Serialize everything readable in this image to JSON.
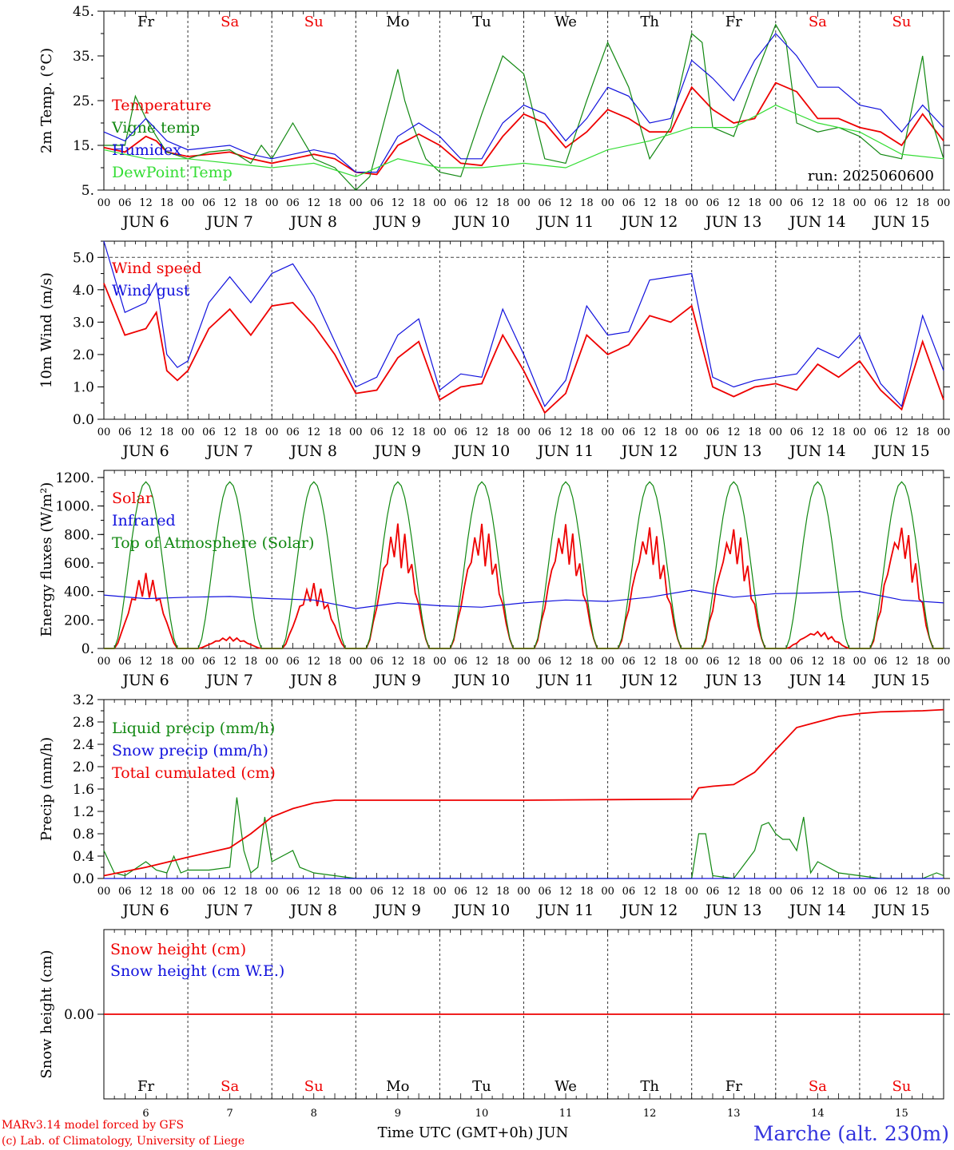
{
  "colors": {
    "red": "#ee0000",
    "green": "#118811",
    "blue": "#1111dd",
    "lightgreen": "#33dd33",
    "black": "#000000"
  },
  "days": {
    "abbr": [
      "Fr",
      "Sa",
      "Su",
      "Mo",
      "Tu",
      "We",
      "Th",
      "Fr",
      "Sa",
      "Su"
    ],
    "weekend": [
      false,
      true,
      true,
      false,
      false,
      false,
      false,
      false,
      true,
      true
    ],
    "dates": [
      "JUN  6",
      "JUN  7",
      "JUN  8",
      "JUN  9",
      "JUN 10",
      "JUN 11",
      "JUN 12",
      "JUN 13",
      "JUN 14",
      "JUN 15"
    ],
    "numbers": [
      "6",
      "7",
      "8",
      "9",
      "10",
      "11",
      "12",
      "13",
      "14",
      "15"
    ],
    "hour_ticks": [
      "00",
      "06",
      "12",
      "18"
    ],
    "end_tick": "00"
  },
  "chart_data": [
    {
      "type": "line",
      "ylabel": "2m Temp. (°C)",
      "ylim": [
        5,
        45
      ],
      "yticks": [
        "45.",
        "35.",
        "25.",
        "15.",
        "5."
      ],
      "ytick_values": [
        45,
        35,
        25,
        15,
        5
      ],
      "annotation": "run: 2025060600",
      "x_unit": "hours since JUN 6 00 UTC",
      "series": [
        {
          "name": "Temperature",
          "color": "red",
          "x": [
            0,
            6,
            12,
            15,
            18,
            24,
            30,
            36,
            42,
            48,
            54,
            60,
            66,
            72,
            78,
            84,
            90,
            96,
            102,
            108,
            114,
            120,
            126,
            132,
            138,
            144,
            150,
            156,
            162,
            168,
            174,
            180,
            186,
            192,
            198,
            204,
            210,
            216,
            222,
            228,
            234,
            240
          ],
          "y": [
            14.5,
            13.5,
            17,
            16,
            13.5,
            12.5,
            13,
            13.5,
            12,
            11,
            12,
            13,
            12,
            9,
            8.5,
            15,
            17.5,
            15,
            11,
            10.5,
            17,
            22,
            20,
            14.5,
            18,
            23,
            21,
            18,
            18,
            28,
            23,
            20,
            21,
            29,
            27,
            21,
            21,
            19,
            18,
            15,
            22,
            16
          ]
        },
        {
          "name": "Vigne temp",
          "color": "green",
          "x": [
            0,
            6,
            9,
            12,
            15,
            18,
            24,
            30,
            36,
            42,
            45,
            48,
            54,
            60,
            66,
            72,
            76,
            80,
            84,
            86,
            88,
            92,
            96,
            102,
            108,
            114,
            120,
            126,
            132,
            138,
            144,
            150,
            156,
            162,
            168,
            171,
            174,
            180,
            186,
            192,
            195,
            198,
            204,
            210,
            216,
            222,
            228,
            234,
            236,
            240
          ],
          "y": [
            15,
            15,
            26,
            21,
            17,
            13.5,
            12,
            13.5,
            14,
            11,
            15,
            12,
            20,
            12,
            10,
            5,
            8,
            20,
            32,
            25,
            20,
            12,
            9,
            8,
            22,
            35,
            31,
            12,
            11,
            25,
            38,
            28,
            12,
            19,
            40,
            38,
            19,
            17,
            30,
            42,
            38,
            20,
            18,
            19,
            17,
            13,
            12,
            35,
            22,
            12
          ]
        },
        {
          "name": "Humidex",
          "color": "blue",
          "x": [
            0,
            6,
            12,
            18,
            24,
            30,
            36,
            42,
            48,
            54,
            60,
            66,
            72,
            78,
            84,
            90,
            96,
            102,
            108,
            114,
            120,
            126,
            132,
            138,
            144,
            150,
            156,
            162,
            168,
            174,
            180,
            186,
            192,
            198,
            204,
            210,
            216,
            222,
            228,
            234,
            240
          ],
          "y": [
            18,
            16,
            21,
            16,
            14,
            14.5,
            15,
            13,
            12,
            13,
            14,
            13,
            9,
            9,
            17,
            20,
            17,
            12,
            12,
            20,
            24,
            22,
            16,
            21,
            28,
            26,
            20,
            21,
            34,
            30,
            25,
            34,
            40,
            35,
            28,
            28,
            24,
            23,
            18,
            24,
            19
          ]
        },
        {
          "name": "DewPoint Temp",
          "color": "lightgreen",
          "x": [
            0,
            12,
            24,
            36,
            48,
            60,
            72,
            84,
            96,
            108,
            120,
            132,
            144,
            156,
            168,
            180,
            192,
            204,
            216,
            228,
            240
          ],
          "y": [
            14,
            12,
            12,
            11,
            10,
            11,
            8,
            12,
            10,
            10,
            11,
            10,
            14,
            16,
            19,
            19,
            24,
            20,
            18,
            13,
            12
          ]
        }
      ]
    },
    {
      "type": "line",
      "ylabel": "10m Wind (m/s)",
      "ylim": [
        0,
        5.5
      ],
      "yticks": [
        "5.0",
        "4.0",
        "3.0",
        "2.0",
        "1.0",
        "0.0"
      ],
      "ytick_values": [
        5,
        4,
        3,
        2,
        1,
        0
      ],
      "x_unit": "hours since JUN 6 00 UTC",
      "series": [
        {
          "name": "Wind speed",
          "color": "red",
          "x": [
            0,
            6,
            12,
            15,
            18,
            21,
            24,
            30,
            36,
            42,
            48,
            54,
            60,
            66,
            72,
            78,
            84,
            90,
            96,
            102,
            108,
            114,
            120,
            126,
            132,
            138,
            144,
            150,
            156,
            162,
            168,
            174,
            180,
            186,
            192,
            198,
            204,
            210,
            216,
            222,
            228,
            234,
            240
          ],
          "y": [
            4.2,
            2.6,
            2.8,
            3.3,
            1.5,
            1.2,
            1.5,
            2.8,
            3.4,
            2.6,
            3.5,
            3.6,
            2.9,
            2.0,
            0.8,
            0.9,
            1.9,
            2.4,
            0.6,
            1.0,
            1.1,
            2.6,
            1.5,
            0.2,
            0.8,
            2.6,
            2.0,
            2.3,
            3.2,
            3.0,
            3.5,
            1.0,
            0.7,
            1.0,
            1.1,
            0.9,
            1.7,
            1.3,
            1.8,
            0.9,
            0.3,
            2.4,
            0.6
          ]
        },
        {
          "name": "Wind gust",
          "color": "blue",
          "x": [
            0,
            6,
            12,
            15,
            18,
            21,
            24,
            30,
            36,
            42,
            48,
            54,
            60,
            66,
            72,
            78,
            84,
            90,
            96,
            102,
            108,
            114,
            120,
            126,
            132,
            138,
            144,
            150,
            156,
            162,
            168,
            174,
            180,
            186,
            192,
            198,
            204,
            210,
            216,
            222,
            228,
            234,
            240
          ],
          "y": [
            5.5,
            3.3,
            3.6,
            4.2,
            2.0,
            1.6,
            1.8,
            3.6,
            4.4,
            3.6,
            4.5,
            4.8,
            3.8,
            2.4,
            1.0,
            1.3,
            2.6,
            3.1,
            0.9,
            1.4,
            1.3,
            3.4,
            2.0,
            0.4,
            1.2,
            3.5,
            2.6,
            2.7,
            4.3,
            4.4,
            4.5,
            1.3,
            1.0,
            1.2,
            1.3,
            1.4,
            2.2,
            1.9,
            2.6,
            1.1,
            0.4,
            3.2,
            1.5
          ]
        }
      ]
    },
    {
      "type": "line",
      "ylabel": "Energy fluxes (W/m²)",
      "ylim": [
        0,
        1250
      ],
      "yticks": [
        "1200.",
        "1000.",
        "800.",
        "600.",
        "400.",
        "200.",
        "0."
      ],
      "ytick_values": [
        1200,
        1000,
        800,
        600,
        400,
        200,
        0
      ],
      "x_unit": "hours since JUN 6 00 UTC",
      "series": [
        {
          "name": "Solar",
          "color": "red",
          "daily_peak_w_m2": [
            530,
            80,
            460,
            880,
            880,
            880,
            860,
            850,
            120,
            870
          ]
        },
        {
          "name": "Infrared",
          "color": "blue",
          "x": [
            0,
            12,
            24,
            36,
            48,
            60,
            72,
            84,
            96,
            108,
            120,
            132,
            144,
            156,
            168,
            180,
            192,
            204,
            216,
            228,
            240
          ],
          "y": [
            375,
            350,
            360,
            365,
            350,
            340,
            280,
            320,
            300,
            290,
            320,
            340,
            330,
            360,
            410,
            360,
            385,
            390,
            400,
            340,
            320
          ]
        },
        {
          "name": "Top of Atmosphere (Solar)",
          "color": "green",
          "daily_peak_w_m2": [
            1170,
            1170,
            1170,
            1170,
            1170,
            1170,
            1170,
            1170,
            1170,
            1170
          ]
        }
      ]
    },
    {
      "type": "line",
      "ylabel": "Precip (mm/h)",
      "ylim": [
        0,
        3.2
      ],
      "yticks": [
        "3.2",
        "2.8",
        "2.4",
        "2.0",
        "1.6",
        "1.2",
        "0.8",
        "0.4",
        "0.0"
      ],
      "ytick_values": [
        3.2,
        2.8,
        2.4,
        2.0,
        1.6,
        1.2,
        0.8,
        0.4,
        0
      ],
      "x_unit": "hours since JUN 6 00 UTC",
      "series": [
        {
          "name": "Liquid precip (mm/h)",
          "color": "green",
          "x": [
            0,
            3,
            6,
            12,
            15,
            18,
            20,
            22,
            24,
            30,
            36,
            38,
            40,
            42,
            44,
            46,
            48,
            54,
            56,
            58,
            60,
            66,
            72,
            120,
            168,
            170,
            172,
            174,
            180,
            186,
            188,
            190,
            192,
            194,
            196,
            198,
            200,
            202,
            204,
            210,
            216,
            222,
            228,
            234,
            238,
            240
          ],
          "y": [
            0.5,
            0.1,
            0.05,
            0.3,
            0.15,
            0.1,
            0.4,
            0.1,
            0.15,
            0.15,
            0.2,
            1.45,
            0.5,
            0.1,
            0.2,
            1.1,
            0.3,
            0.5,
            0.2,
            0.15,
            0.1,
            0.05,
            0,
            0,
            0,
            0.8,
            0.8,
            0.05,
            0,
            0.5,
            0.95,
            1.0,
            0.8,
            0.7,
            0.7,
            0.5,
            1.1,
            0.1,
            0.3,
            0.1,
            0.05,
            0,
            0,
            0,
            0.1,
            0.05
          ]
        },
        {
          "name": "Snow precip (mm/h)",
          "color": "blue",
          "x": [
            0,
            240
          ],
          "y": [
            0,
            0
          ]
        },
        {
          "name": "Total cumulated (cm)",
          "color": "red",
          "x": [
            0,
            12,
            24,
            36,
            42,
            48,
            54,
            60,
            66,
            72,
            120,
            168,
            170,
            174,
            180,
            186,
            192,
            198,
            204,
            210,
            216,
            222,
            228,
            234,
            240
          ],
          "y": [
            0.05,
            0.2,
            0.38,
            0.55,
            0.8,
            1.1,
            1.25,
            1.35,
            1.4,
            1.4,
            1.4,
            1.42,
            1.62,
            1.65,
            1.68,
            1.9,
            2.3,
            2.7,
            2.8,
            2.9,
            2.95,
            2.98,
            2.99,
            3.0,
            3.02
          ]
        }
      ]
    },
    {
      "type": "line",
      "ylabel": "Snow height (cm)",
      "ylim": [
        -1,
        1
      ],
      "yticks": [
        "0.00"
      ],
      "ytick_values": [
        0
      ],
      "x_unit": "hours since JUN 6 00 UTC",
      "series": [
        {
          "name": "Snow height (cm)",
          "color": "red",
          "x": [
            0,
            240
          ],
          "y": [
            0,
            0
          ]
        },
        {
          "name": "Snow height (cm W.E.)",
          "color": "blue"
        }
      ]
    }
  ],
  "footer": {
    "model_line": "MARv3.14 model forced by GFS",
    "credit_line": "(c) Lab. of Climatology, University of Liege",
    "xlabel": "Time UTC (GMT+0h) JUN",
    "station": "Marche (alt. 230m)"
  }
}
